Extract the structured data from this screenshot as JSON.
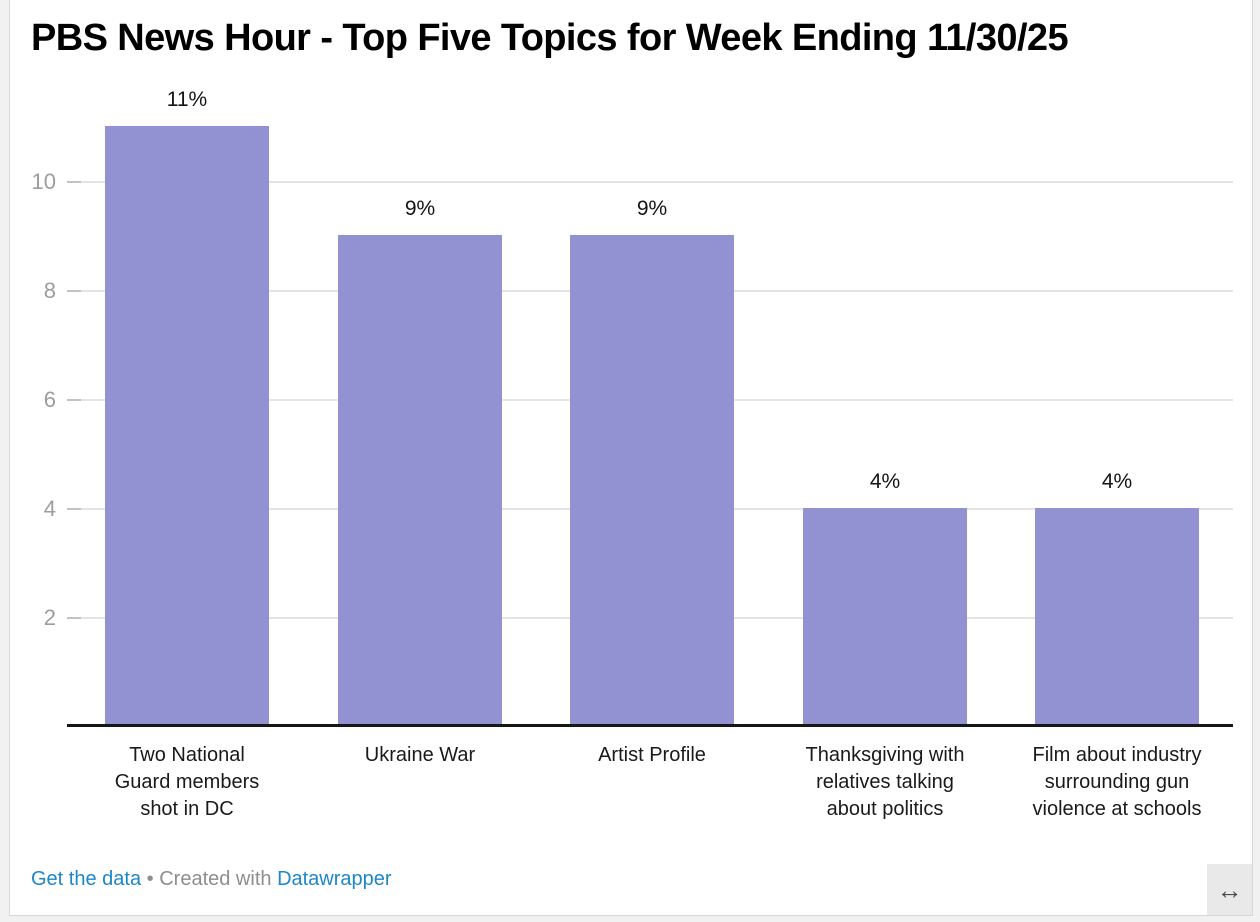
{
  "header": {
    "title": "PBS News Hour - Top Five Topics for Week Ending 11/30/25"
  },
  "chart_data": {
    "type": "bar",
    "title": "PBS News Hour - Top Five Topics for Week Ending 11/30/25",
    "categories": [
      "Two National Guard members shot in DC",
      "Ukraine War",
      "Artist Profile",
      "Thanksgiving with relatives talking about politics",
      "Film about industry surrounding gun violence at schools"
    ],
    "category_lines": [
      [
        "Two National",
        "Guard members",
        "shot in DC"
      ],
      [
        "Ukraine War"
      ],
      [
        "Artist Profile"
      ],
      [
        "Thanksgiving with",
        "relatives talking",
        "about politics"
      ],
      [
        "Film about industry",
        "surrounding gun",
        "violence at schools"
      ]
    ],
    "values": [
      11,
      9,
      9,
      4,
      4
    ],
    "value_labels": [
      "11%",
      "9%",
      "9%",
      "4%",
      "4%"
    ],
    "yticks": [
      2,
      4,
      6,
      8,
      10
    ],
    "ylim": [
      0,
      11
    ],
    "xlabel": "",
    "ylabel": "",
    "grid": true,
    "legend_position": "none",
    "bar_color": "#9291d1"
  },
  "footer": {
    "get_the_data": "Get the data",
    "separator": "•",
    "created_with": "Created with",
    "tool": "Datawrapper"
  },
  "controls": {
    "resize_icon": "↔"
  },
  "colors": {
    "bar": "#9291d1",
    "axis_label": "#9d9d9d",
    "gridline": "#e4e4e4",
    "baseline": "#161616",
    "text": "#1a1a1a",
    "link": "#1d87c9",
    "muted_text": "#8e8e8e",
    "frame_border": "#d7d7d7",
    "resize_bg": "#e9e9e9",
    "page_bg": "#f1f1f1"
  }
}
